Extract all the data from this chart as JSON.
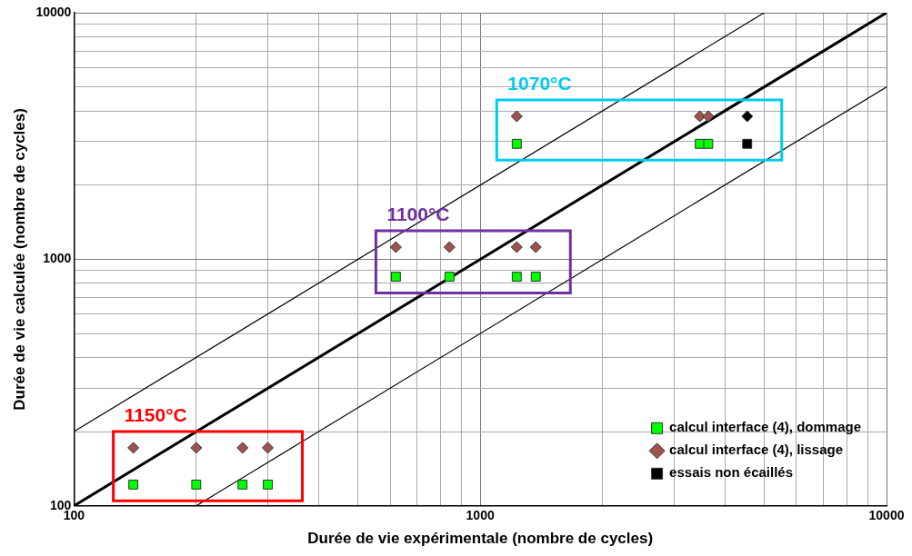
{
  "chart_data": {
    "type": "scatter",
    "xlabel": "Durée de vie expérimentale (nombre de cycles)",
    "ylabel": "Durée de vie calculée (nombre de cycles)",
    "log": "xy",
    "grid": true,
    "legend": "bottom right",
    "xlim": [
      100,
      10000
    ],
    "ylim": [
      100,
      10000
    ],
    "xticks": [
      100,
      {
        "value": 200,
        "label": null
      },
      {
        "value": 300,
        "label": null
      },
      {
        "value": 400,
        "label": null
      },
      {
        "value": 500,
        "label": null
      },
      {
        "value": 600,
        "label": null
      },
      {
        "value": 700,
        "label": null
      },
      {
        "value": 800,
        "label": null
      },
      {
        "value": 900,
        "label": null
      },
      1000,
      {
        "value": 2000,
        "label": null
      },
      {
        "value": 3000,
        "label": null
      },
      {
        "value": 4000,
        "label": null
      },
      {
        "value": 5000,
        "label": null
      },
      {
        "value": 6000,
        "label": null
      },
      {
        "value": 7000,
        "label": null
      },
      {
        "value": 8000,
        "label": null
      },
      {
        "value": 9000,
        "label": null
      },
      10000
    ],
    "yticks": [
      100,
      {
        "value": 200,
        "label": null
      },
      {
        "value": 300,
        "label": null
      },
      {
        "value": 400,
        "label": null
      },
      {
        "value": 500,
        "label": null
      },
      {
        "value": 600,
        "label": null
      },
      {
        "value": 700,
        "label": null
      },
      {
        "value": 800,
        "label": null
      },
      {
        "value": 900,
        "label": null
      },
      1000,
      {
        "value": 2000,
        "label": null
      },
      {
        "value": 3000,
        "label": null
      },
      {
        "value": 4000,
        "label": null
      },
      {
        "value": 5000,
        "label": null
      },
      {
        "value": 6000,
        "label": null
      },
      {
        "value": 7000,
        "label": null
      },
      {
        "value": 8000,
        "label": null
      },
      {
        "value": 9000,
        "label": null
      },
      10000
    ],
    "series": [
      {
        "type": "line",
        "color": "#000000",
        "marker": "none",
        "x": [
          100,
          10000
        ],
        "values": [
          100,
          10000
        ]
      },
      {
        "type": "line",
        "color": "#000000",
        "marker": "none",
        "x": [
          100,
          5000
        ],
        "values": [
          200,
          10000
        ]
      },
      {
        "type": "line",
        "color": "#000000",
        "marker": "none",
        "x": [
          200,
          10000
        ],
        "values": [
          100,
          5000
        ]
      },
      {
        "name": "calcul interface (4), dommage",
        "color": "#00ff00",
        "marker": "square",
        "x": [
          140,
          200,
          260,
          300,
          620,
          840,
          1230,
          1370,
          1230,
          3470,
          3640
        ],
        "values": [
          122,
          122,
          122,
          122,
          850,
          850,
          850,
          850,
          2940,
          2940,
          2940
        ]
      },
      {
        "name": "calcul interface (4), lissage",
        "color": "#a0524d",
        "marker": "diamond",
        "x": [
          140,
          200,
          260,
          300,
          620,
          840,
          1230,
          1370,
          1230,
          3470,
          3640
        ],
        "values": [
          172,
          172,
          172,
          172,
          1120,
          1120,
          1120,
          1120,
          3800,
          3800,
          3800
        ]
      },
      {
        "name": "essais non écaillés",
        "color": "#000000",
        "marker": "square",
        "x": [
          4540
        ],
        "values": [
          2940
        ]
      },
      {
        "color": "#000000",
        "marker": "diamond",
        "x": [
          4540
        ],
        "values": [
          3800
        ]
      }
    ],
    "annotations": [
      "1070°C",
      "1100°C",
      "1150°C"
    ]
  }
}
